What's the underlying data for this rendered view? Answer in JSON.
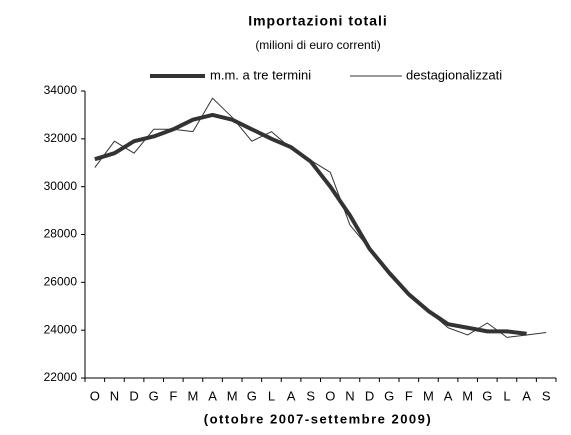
{
  "chart_data": {
    "type": "line",
    "title": "Importazioni totali",
    "subtitle": "(milioni di euro correnti)",
    "x_label": "(ottobre 2007-settembre 2009)",
    "categories": [
      "O",
      "N",
      "D",
      "G",
      "F",
      "M",
      "A",
      "M",
      "G",
      "L",
      "A",
      "S",
      "O",
      "N",
      "D",
      "G",
      "F",
      "M",
      "A",
      "M",
      "G",
      "L",
      "A",
      "S"
    ],
    "series": [
      {
        "name": "m.m. a tre termini",
        "color": "#333333",
        "values": [
          31150,
          31400,
          31900,
          32100,
          32400,
          32800,
          33000,
          32800,
          32400,
          32000,
          31650,
          31050,
          30000,
          28800,
          27400,
          26400,
          25500,
          24800,
          24250,
          24100,
          23950,
          23950,
          23850,
          null
        ]
      },
      {
        "name": "destagionalizzati",
        "color": "#333333",
        "values": [
          30800,
          31900,
          31400,
          32400,
          32400,
          32300,
          33700,
          32900,
          31900,
          32300,
          31600,
          31100,
          30600,
          28400,
          27400,
          26300,
          25500,
          24800,
          24100,
          23800,
          24300,
          23700,
          23800,
          23900
        ]
      }
    ],
    "ylim": [
      22000,
      34000
    ],
    "yticks": [
      22000,
      24000,
      26000,
      28000,
      30000,
      32000,
      34000
    ],
    "grid": false,
    "legend": "top"
  }
}
